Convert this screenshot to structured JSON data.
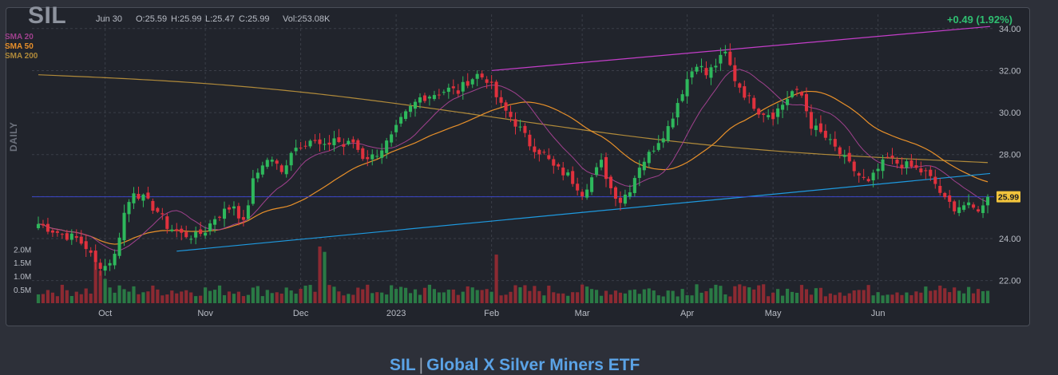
{
  "header": {
    "ticker": "SIL",
    "date": "Jun 30",
    "open": "O:25.59",
    "high": "H:25.99",
    "low": "L:25.47",
    "close": "C:25.99",
    "volume": "Vol:253.08K",
    "change": "+0.49 (1.92%)",
    "timeframe": "DAILY"
  },
  "footer": {
    "ticker": "SIL",
    "name": "Global X Silver Miners ETF"
  },
  "colors": {
    "up": "#2eb85c",
    "down": "#e0313d",
    "sma20": "#a0418e",
    "sma50": "#e8902a",
    "sma200": "#b08a3a",
    "upper_trendline": "#c43ec9",
    "lower_trendline": "#1e9ae0",
    "last_price_line": "#3a46c8",
    "last_price_badge": "#f2c43c"
  },
  "chart_data": {
    "type": "candlestick",
    "title": "SIL",
    "legend": [
      {
        "name": "SMA 20",
        "color": "#a0418e"
      },
      {
        "name": "SMA 50",
        "color": "#e8902a"
      },
      {
        "name": "SMA 200",
        "color": "#b08a3a"
      }
    ],
    "x_tick_labels": [
      "Oct",
      "Nov",
      "Dec",
      "2023",
      "Feb",
      "Mar",
      "Apr",
      "May",
      "Jun"
    ],
    "y_ticks": [
      22,
      24,
      26,
      28,
      30,
      32,
      34
    ],
    "y_tick_labels": [
      "22.00",
      "24.00",
      "26.00",
      "28.00",
      "30.00",
      "32.00",
      "34.00"
    ],
    "ylim": [
      21.0,
      34.6
    ],
    "volume_tick_labels": [
      "2.0M",
      "1.5M",
      "1.0M",
      "0.5M"
    ],
    "volume_range": [
      0,
      2600000
    ],
    "last_price": 25.99,
    "last_price_label": "25.99",
    "n_bars": 200,
    "month_start_index": [
      14,
      35,
      55,
      75,
      95,
      114,
      136,
      154,
      176
    ],
    "grid": true,
    "legend_position": "top-left",
    "close_anchors": [
      [
        0,
        24.7
      ],
      [
        5,
        24.2
      ],
      [
        8,
        24.0
      ],
      [
        10,
        23.6
      ],
      [
        12,
        22.8
      ],
      [
        14,
        22.7
      ],
      [
        16,
        23.2
      ],
      [
        18,
        25.2
      ],
      [
        20,
        26.3
      ],
      [
        23,
        25.7
      ],
      [
        25,
        25.3
      ],
      [
        27,
        24.6
      ],
      [
        30,
        24.2
      ],
      [
        33,
        24.1
      ],
      [
        35,
        24.4
      ],
      [
        37,
        25.0
      ],
      [
        39,
        25.3
      ],
      [
        41,
        25.6
      ],
      [
        43,
        24.7
      ],
      [
        45,
        26.7
      ],
      [
        47,
        27.6
      ],
      [
        49,
        27.8
      ],
      [
        51,
        27.1
      ],
      [
        53,
        28.2
      ],
      [
        55,
        28.5
      ],
      [
        57,
        28.7
      ],
      [
        60,
        28.3
      ],
      [
        62,
        28.8
      ],
      [
        64,
        28.4
      ],
      [
        66,
        28.6
      ],
      [
        68,
        27.9
      ],
      [
        70,
        27.9
      ],
      [
        72,
        28.3
      ],
      [
        74,
        28.8
      ],
      [
        76,
        29.6
      ],
      [
        78,
        30.2
      ],
      [
        80,
        30.7
      ],
      [
        83,
        30.9
      ],
      [
        86,
        31.1
      ],
      [
        88,
        31.0
      ],
      [
        90,
        31.5
      ],
      [
        92,
        31.8
      ],
      [
        94,
        31.6
      ],
      [
        95,
        31.2
      ],
      [
        97,
        30.3
      ],
      [
        99,
        29.8
      ],
      [
        101,
        29.2
      ],
      [
        103,
        28.5
      ],
      [
        106,
        28.0
      ],
      [
        108,
        27.4
      ],
      [
        111,
        27.0
      ],
      [
        113,
        26.5
      ],
      [
        114,
        26.2
      ],
      [
        116,
        26.9
      ],
      [
        118,
        27.6
      ],
      [
        120,
        26.4
      ],
      [
        122,
        25.8
      ],
      [
        124,
        26.4
      ],
      [
        126,
        27.5
      ],
      [
        128,
        28.0
      ],
      [
        130,
        28.7
      ],
      [
        132,
        29.3
      ],
      [
        134,
        30.5
      ],
      [
        136,
        31.6
      ],
      [
        138,
        32.4
      ],
      [
        140,
        31.8
      ],
      [
        142,
        32.3
      ],
      [
        144,
        32.8
      ],
      [
        146,
        31.6
      ],
      [
        148,
        30.9
      ],
      [
        151,
        30.1
      ],
      [
        154,
        29.9
      ],
      [
        156,
        30.4
      ],
      [
        158,
        31.0
      ],
      [
        160,
        30.8
      ],
      [
        162,
        29.4
      ],
      [
        165,
        28.8
      ],
      [
        167,
        28.3
      ],
      [
        170,
        27.5
      ],
      [
        172,
        27.0
      ],
      [
        174,
        26.6
      ],
      [
        176,
        27.3
      ],
      [
        178,
        27.8
      ],
      [
        180,
        27.6
      ],
      [
        183,
        27.4
      ],
      [
        186,
        27.1
      ],
      [
        188,
        26.6
      ],
      [
        190,
        25.8
      ],
      [
        192,
        25.5
      ],
      [
        194,
        25.6
      ],
      [
        196,
        25.4
      ],
      [
        198,
        25.5
      ],
      [
        199,
        25.99
      ]
    ],
    "volume_spikes": [
      [
        12,
        1500000
      ],
      [
        13,
        1200000
      ],
      [
        14,
        900000
      ],
      [
        59,
        2100000
      ],
      [
        60,
        1900000
      ],
      [
        96,
        1800000
      ],
      [
        138,
        700000
      ],
      [
        152,
        700000
      ]
    ],
    "upper_trendline": {
      "start_index": 95,
      "start_price": 32.0,
      "end_index": 200,
      "end_price": 34.1
    },
    "lower_trendline": {
      "start_index": 29,
      "start_price": 23.4,
      "end_index": 200,
      "end_price": 27.1
    }
  }
}
